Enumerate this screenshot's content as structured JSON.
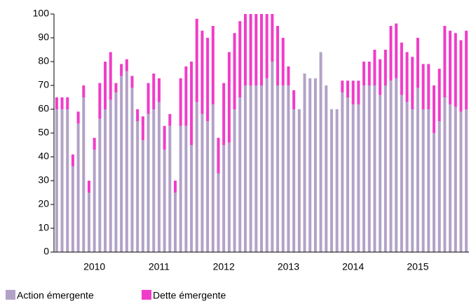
{
  "chart_data": {
    "type": "stacked_bar",
    "categories": [
      null,
      null,
      null,
      null,
      null,
      null,
      null,
      "2010",
      null,
      null,
      null,
      null,
      null,
      null,
      null,
      null,
      null,
      null,
      null,
      "2011",
      null,
      null,
      null,
      null,
      null,
      null,
      null,
      null,
      null,
      null,
      null,
      "2012",
      null,
      null,
      null,
      null,
      null,
      null,
      null,
      null,
      null,
      null,
      null,
      "2013",
      null,
      null,
      null,
      null,
      null,
      null,
      null,
      null,
      null,
      null,
      null,
      "2014",
      null,
      null,
      null,
      null,
      null,
      null,
      null,
      null,
      null,
      null,
      null,
      "2015",
      null,
      null,
      null,
      null,
      null,
      null,
      null,
      null,
      null
    ],
    "series": [
      {
        "name": "Action émergente",
        "color": "#b3a2c7",
        "values": [
          60,
          60,
          60,
          36,
          54,
          65,
          25,
          43,
          56,
          60,
          64,
          67,
          74,
          76,
          69,
          55,
          47,
          58,
          60,
          63,
          43,
          53,
          25,
          53,
          53,
          45,
          63,
          58,
          55,
          62,
          33,
          45,
          46,
          60,
          65,
          70,
          70,
          70,
          70,
          73,
          80,
          70,
          70,
          70,
          60,
          60,
          75,
          73,
          73,
          84,
          70,
          60,
          60,
          67,
          65,
          62,
          62,
          70,
          70,
          70,
          66,
          70,
          72,
          73,
          66,
          63,
          60,
          69,
          60,
          60,
          50,
          55,
          65,
          62,
          61,
          59,
          60
        ]
      },
      {
        "name": "Dette émergente",
        "color": "#f03cc8",
        "values": [
          5,
          5,
          5,
          5,
          5,
          5,
          5,
          5,
          15,
          20,
          20,
          4,
          5,
          5,
          5,
          5,
          10,
          13,
          15,
          10,
          10,
          5,
          5,
          20,
          25,
          35,
          35,
          35,
          35,
          33,
          15,
          26,
          38,
          32,
          32,
          30,
          30,
          30,
          30,
          27,
          20,
          25,
          20,
          8,
          8,
          0,
          0,
          0,
          0,
          0,
          0,
          0,
          0,
          5,
          7,
          10,
          10,
          10,
          10,
          15,
          15,
          15,
          23,
          23,
          22,
          21,
          22,
          21,
          19,
          19,
          20,
          22,
          30,
          31,
          31,
          30,
          33
        ]
      }
    ],
    "ylim": [
      0,
      100
    ],
    "yticks": [
      0,
      10,
      20,
      30,
      40,
      50,
      60,
      70,
      80,
      90,
      100
    ]
  }
}
